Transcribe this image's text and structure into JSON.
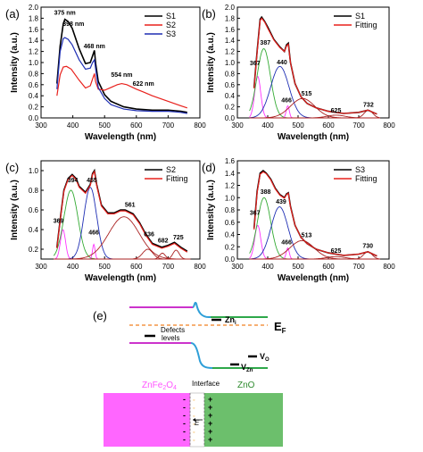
{
  "chart_data": [
    {
      "panel": "(a)",
      "type": "line",
      "xlabel": "Wavelength (nm)",
      "ylabel": "Intensity (a.u.)",
      "xlim": [
        300,
        800
      ],
      "ylim": [
        0,
        2.0
      ],
      "xticks": [
        300,
        400,
        500,
        600,
        700,
        800
      ],
      "yticks": [
        0.0,
        0.2,
        0.4,
        0.6,
        0.8,
        1.0,
        1.2,
        1.4,
        1.6,
        1.8,
        2.0
      ],
      "legend_position": "top-right",
      "series": [
        {
          "name": "S1",
          "color": "#000000",
          "x": [
            350,
            360,
            370,
            375,
            385,
            398,
            420,
            440,
            455,
            462,
            468,
            472,
            480,
            500,
            520,
            540,
            560,
            600,
            650,
            700,
            720,
            740,
            760
          ],
          "y": [
            0.62,
            1.3,
            1.7,
            1.78,
            1.74,
            1.62,
            1.25,
            0.98,
            1.0,
            1.12,
            1.22,
            0.98,
            0.66,
            0.42,
            0.3,
            0.25,
            0.2,
            0.16,
            0.14,
            0.14,
            0.13,
            0.12,
            0.1
          ]
        },
        {
          "name": "S2",
          "color": "#e8201c",
          "x": [
            350,
            360,
            370,
            380,
            395,
            420,
            440,
            455,
            462,
            468,
            472,
            480,
            500,
            520,
            540,
            554,
            570,
            600,
            622,
            650,
            700,
            740,
            760
          ],
          "y": [
            0.4,
            0.78,
            0.92,
            0.93,
            0.88,
            0.68,
            0.54,
            0.58,
            0.7,
            0.8,
            0.65,
            0.52,
            0.5,
            0.55,
            0.6,
            0.62,
            0.6,
            0.52,
            0.47,
            0.4,
            0.3,
            0.22,
            0.18
          ]
        },
        {
          "name": "S3",
          "color": "#1f2fb4",
          "x": [
            350,
            360,
            370,
            375,
            385,
            398,
            420,
            440,
            455,
            462,
            468,
            472,
            480,
            500,
            520,
            540,
            560,
            600,
            650,
            700,
            720,
            740,
            760
          ],
          "y": [
            0.52,
            1.2,
            1.43,
            1.45,
            1.42,
            1.32,
            1.05,
            0.88,
            0.9,
            1.0,
            1.05,
            0.88,
            0.55,
            0.35,
            0.24,
            0.2,
            0.16,
            0.13,
            0.12,
            0.12,
            0.11,
            0.1,
            0.08
          ]
        }
      ],
      "annotations": [
        {
          "text": "375 nm",
          "x": 375,
          "y": 1.86
        },
        {
          "text": "398 nm",
          "x": 402,
          "y": 1.66
        },
        {
          "text": "468 nm",
          "x": 468,
          "y": 1.26
        },
        {
          "text": "554 nm",
          "x": 554,
          "y": 0.74
        },
        {
          "text": "622 nm",
          "x": 622,
          "y": 0.58
        }
      ]
    },
    {
      "panel": "(b)",
      "type": "line",
      "xlabel": "Wavelength (nm)",
      "ylabel": "Intensity (a.u.)",
      "xlim": [
        300,
        800
      ],
      "ylim": [
        0,
        2.0
      ],
      "xticks": [
        300,
        400,
        500,
        600,
        700,
        800
      ],
      "yticks": [
        0.0,
        0.2,
        0.4,
        0.6,
        0.8,
        1.0,
        1.2,
        1.4,
        1.6,
        1.8,
        2.0
      ],
      "legend_position": "top-right",
      "series": [
        {
          "name": "S1",
          "color": "#000000",
          "x": [
            355,
            365,
            375,
            380,
            390,
            400,
            420,
            440,
            455,
            462,
            468,
            475,
            490,
            510,
            530,
            560,
            600,
            650,
            700,
            730,
            760
          ],
          "y": [
            0.55,
            1.2,
            1.78,
            1.82,
            1.74,
            1.64,
            1.42,
            1.28,
            1.2,
            1.32,
            1.35,
            1.0,
            0.62,
            0.38,
            0.26,
            0.18,
            0.12,
            0.08,
            0.1,
            0.14,
            0.07
          ]
        },
        {
          "name": "Fitting",
          "color": "#e8201c",
          "x": [
            355,
            365,
            375,
            380,
            390,
            400,
            420,
            440,
            455,
            462,
            468,
            475,
            490,
            510,
            530,
            560,
            600,
            650,
            700,
            730,
            760
          ],
          "y": [
            0.53,
            1.18,
            1.76,
            1.8,
            1.73,
            1.62,
            1.41,
            1.27,
            1.2,
            1.3,
            1.33,
            1.0,
            0.62,
            0.38,
            0.26,
            0.18,
            0.12,
            0.08,
            0.1,
            0.14,
            0.07
          ]
        }
      ],
      "components": [
        {
          "center": 367,
          "amp": 0.75,
          "width": 10
        },
        {
          "center": 387,
          "amp": 1.25,
          "width": 22
        },
        {
          "center": 440,
          "amp": 0.93,
          "width": 30
        },
        {
          "center": 466,
          "amp": 0.22,
          "width": 5
        },
        {
          "center": 515,
          "amp": 0.35,
          "width": 40
        },
        {
          "center": 625,
          "amp": 0.05,
          "width": 30
        },
        {
          "center": 732,
          "amp": 0.14,
          "width": 14
        }
      ],
      "annotations": [
        {
          "text": "367",
          "x": 358,
          "y": 0.95
        },
        {
          "text": "387",
          "x": 392,
          "y": 1.32
        },
        {
          "text": "440",
          "x": 447,
          "y": 0.97
        },
        {
          "text": "466",
          "x": 462,
          "y": 0.28
        },
        {
          "text": "515",
          "x": 528,
          "y": 0.4
        },
        {
          "text": "625",
          "x": 625,
          "y": 0.1
        },
        {
          "text": "732",
          "x": 732,
          "y": 0.2
        }
      ]
    },
    {
      "panel": "(c)",
      "type": "line",
      "xlabel": "Wavelength (nm)",
      "ylabel": "Intensity (a.u.)",
      "xlim": [
        300,
        800
      ],
      "ylim": [
        0.1,
        1.1
      ],
      "xticks": [
        300,
        400,
        500,
        600,
        700,
        800
      ],
      "yticks": [
        0.2,
        0.4,
        0.6,
        0.8,
        1.0
      ],
      "legend_position": "top-right",
      "series": [
        {
          "name": "S2",
          "color": "#000000",
          "x": [
            350,
            362,
            372,
            385,
            398,
            410,
            420,
            440,
            455,
            462,
            468,
            475,
            490,
            510,
            530,
            550,
            565,
            590,
            610,
            630,
            650,
            680,
            700,
            720,
            740,
            760
          ],
          "y": [
            0.22,
            0.55,
            0.8,
            0.92,
            0.96,
            0.92,
            0.84,
            0.78,
            0.86,
            0.97,
            1.0,
            0.86,
            0.65,
            0.57,
            0.57,
            0.6,
            0.6,
            0.56,
            0.47,
            0.35,
            0.26,
            0.22,
            0.24,
            0.27,
            0.22,
            0.18
          ]
        },
        {
          "name": "Fitting",
          "color": "#e8201c",
          "x": [
            350,
            362,
            372,
            385,
            398,
            410,
            420,
            440,
            455,
            462,
            468,
            475,
            490,
            510,
            530,
            550,
            565,
            590,
            610,
            630,
            650,
            680,
            700,
            720,
            740,
            760
          ],
          "y": [
            0.21,
            0.54,
            0.79,
            0.91,
            0.95,
            0.91,
            0.83,
            0.77,
            0.85,
            0.96,
            0.99,
            0.85,
            0.64,
            0.56,
            0.56,
            0.59,
            0.59,
            0.55,
            0.46,
            0.34,
            0.25,
            0.21,
            0.23,
            0.26,
            0.21,
            0.17
          ]
        }
      ],
      "components": [
        {
          "center": 369,
          "amp": 0.3,
          "width": 8
        },
        {
          "center": 394,
          "amp": 0.7,
          "width": 22
        },
        {
          "center": 455,
          "amp": 0.73,
          "width": 20
        },
        {
          "center": 466,
          "amp": 0.15,
          "width": 4
        },
        {
          "center": 561,
          "amp": 0.43,
          "width": 48
        },
        {
          "center": 636,
          "amp": 0.1,
          "width": 16
        },
        {
          "center": 682,
          "amp": 0.06,
          "width": 9
        },
        {
          "center": 725,
          "amp": 0.09,
          "width": 10
        }
      ],
      "annotations": [
        {
          "text": "369",
          "x": 355,
          "y": 0.47
        },
        {
          "text": "394",
          "x": 400,
          "y": 0.88
        },
        {
          "text": "455",
          "x": 460,
          "y": 0.88
        },
        {
          "text": "466",
          "x": 466,
          "y": 0.35
        },
        {
          "text": "561",
          "x": 580,
          "y": 0.63
        },
        {
          "text": "636",
          "x": 640,
          "y": 0.33
        },
        {
          "text": "682",
          "x": 684,
          "y": 0.27
        },
        {
          "text": "725",
          "x": 732,
          "y": 0.3
        }
      ]
    },
    {
      "panel": "(d)",
      "type": "line",
      "xlabel": "Wavelength (nm)",
      "ylabel": "Intensity (a.u.)",
      "xlim": [
        300,
        800
      ],
      "ylim": [
        0,
        1.6
      ],
      "xticks": [
        300,
        400,
        500,
        600,
        700,
        800
      ],
      "yticks": [
        0.0,
        0.2,
        0.4,
        0.6,
        0.8,
        1.0,
        1.2,
        1.4,
        1.6
      ],
      "legend_position": "top-right",
      "series": [
        {
          "name": "S3",
          "color": "#000000",
          "x": [
            355,
            365,
            375,
            385,
            395,
            410,
            425,
            440,
            455,
            462,
            468,
            475,
            490,
            510,
            530,
            560,
            600,
            650,
            700,
            730,
            760
          ],
          "y": [
            0.5,
            1.1,
            1.4,
            1.44,
            1.4,
            1.3,
            1.15,
            1.05,
            1.0,
            1.06,
            1.08,
            0.86,
            0.55,
            0.35,
            0.25,
            0.16,
            0.1,
            0.06,
            0.08,
            0.12,
            0.05
          ]
        },
        {
          "name": "Fitting",
          "color": "#e8201c",
          "x": [
            355,
            365,
            375,
            385,
            395,
            410,
            425,
            440,
            455,
            462,
            468,
            475,
            490,
            510,
            530,
            560,
            600,
            650,
            700,
            730,
            760
          ],
          "y": [
            0.48,
            1.08,
            1.38,
            1.42,
            1.39,
            1.29,
            1.14,
            1.04,
            0.99,
            1.05,
            1.07,
            0.85,
            0.55,
            0.35,
            0.25,
            0.16,
            0.1,
            0.06,
            0.08,
            0.12,
            0.05
          ]
        }
      ],
      "components": [
        {
          "center": 367,
          "amp": 0.55,
          "width": 10
        },
        {
          "center": 388,
          "amp": 1.0,
          "width": 22
        },
        {
          "center": 439,
          "amp": 0.85,
          "width": 28
        },
        {
          "center": 466,
          "amp": 0.18,
          "width": 5
        },
        {
          "center": 513,
          "amp": 0.3,
          "width": 40
        },
        {
          "center": 625,
          "amp": 0.04,
          "width": 30
        },
        {
          "center": 730,
          "amp": 0.12,
          "width": 14
        }
      ],
      "annotations": [
        {
          "text": "367",
          "x": 358,
          "y": 0.72
        },
        {
          "text": "388",
          "x": 393,
          "y": 1.06
        },
        {
          "text": "439",
          "x": 444,
          "y": 0.9
        },
        {
          "text": "466",
          "x": 462,
          "y": 0.24
        },
        {
          "text": "513",
          "x": 528,
          "y": 0.36
        },
        {
          "text": "625",
          "x": 625,
          "y": 0.1
        },
        {
          "text": "730",
          "x": 730,
          "y": 0.18
        }
      ]
    }
  ],
  "panel_e": {
    "label": "(e)",
    "zn_i": "Zn",
    "zn_i_sub": "i",
    "fermi": "E",
    "fermi_sub": "F",
    "defects_line1": "Defects",
    "defects_line2": "levels",
    "v_o": "V",
    "v_o_sub": "O",
    "v_zn": "V",
    "v_zn_sub": "Zn",
    "left_material": "ZnFe",
    "left_sub1": "2",
    "left_o": "O",
    "left_sub2": "4",
    "interface": "Interface",
    "right_material": "ZnO",
    "field": "E",
    "minus_signs": [
      "-",
      "-",
      "-",
      "-",
      "-",
      "-"
    ],
    "plus_signs": [
      "+",
      "+",
      "+",
      "+",
      "+",
      "+"
    ],
    "colors": {
      "left_block": "#ff66ff",
      "right_block": "#6cbf6c",
      "band_left": "#cc33cc",
      "band_mid": "#2f9fd8",
      "band_right": "#2ea84a",
      "fermi_line": "#f08020",
      "left_label": "#ff55ff",
      "right_label": "#2e8b2e"
    }
  }
}
